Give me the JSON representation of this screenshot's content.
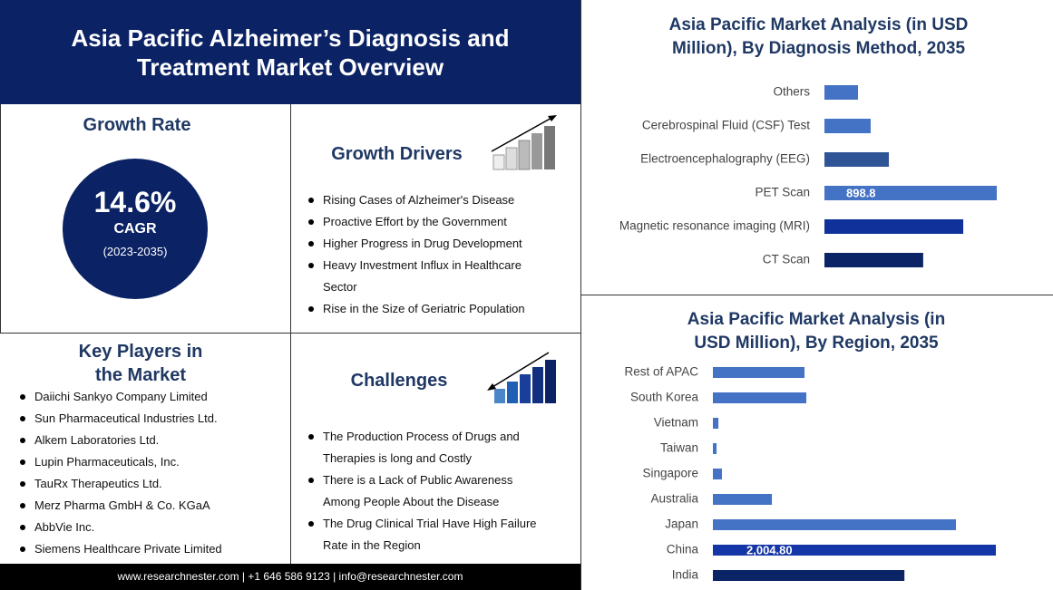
{
  "header": {
    "title": "Asia Pacific Alzheimer’s Diagnosis and Treatment Market Overview"
  },
  "growth_rate": {
    "heading": "Growth Rate",
    "value": "14.6%",
    "label": "CAGR",
    "period": "(2023-2035)"
  },
  "growth_drivers": {
    "heading": "Growth Drivers",
    "items": [
      "Rising Cases of Alzheimer's Disease",
      "Proactive Effort by the Government",
      "Higher Progress in Drug Development",
      "Heavy Investment Influx in Healthcare Sector",
      "Rise in the Size of Geriatric Population"
    ]
  },
  "key_players": {
    "heading": "Key Players in the Market",
    "items": [
      "Daiichi Sankyo Company Limited",
      "Sun Pharmaceutical  Industries Ltd.",
      "Alkem Laboratories  Ltd.",
      "Lupin Pharmaceuticals,  Inc.",
      "TauRx Therapeutics  Ltd.",
      "Merz Pharma GmbH & Co. KGaA",
      "AbbVie Inc.",
      "Siemens Healthcare Private Limited"
    ]
  },
  "challenges": {
    "heading": "Challenges",
    "items": [
      "The Production  Process of Drugs and Therapies is long and Costly",
      "There is a Lack of Public Awareness Among People About the Disease",
      "The Drug Clinical Trial Have High Failure Rate in the Region"
    ]
  },
  "footer": {
    "text": "www.researchnester.com  | +1 646 586 9123 | info@researchnester.com"
  },
  "chart_data": [
    {
      "type": "bar",
      "orientation": "horizontal",
      "title": "Asia Pacific Market Analysis (in USD Million), By Diagnosis Method, 2035",
      "categories": [
        "Others",
        "Cerebrospinal Fluid (CSF) Test",
        "Electroencephalography (EEG)",
        "PET Scan",
        "Magnetic resonance imaging (MRI)",
        "CT Scan"
      ],
      "values": [
        175,
        241,
        336,
        898.8,
        724,
        515
      ],
      "value_labels": [
        null,
        null,
        null,
        "898.8",
        null,
        null
      ],
      "colors": [
        "#4472c4",
        "#4472c4",
        "#2f5597",
        "#4472c4",
        "#10309a",
        "#0b2466"
      ]
    },
    {
      "type": "bar",
      "orientation": "horizontal",
      "title": "Asia Pacific Market Analysis (in USD Million), By Region, 2035",
      "categories": [
        "Rest of APAC",
        "South Korea",
        "Vietnam",
        "Taiwan",
        "Singapore",
        "Australia",
        "Japan",
        "China",
        "India"
      ],
      "values": [
        649,
        662,
        39,
        26,
        64,
        418,
        1722,
        2004.8,
        1357
      ],
      "value_labels": [
        null,
        null,
        null,
        null,
        null,
        null,
        null,
        "2,004.80",
        null
      ],
      "colors": [
        "#4472c4",
        "#4472c4",
        "#4472c4",
        "#4472c4",
        "#4472c4",
        "#4472c4",
        "#4472c4",
        "#1536a6",
        "#0b2466"
      ]
    }
  ]
}
